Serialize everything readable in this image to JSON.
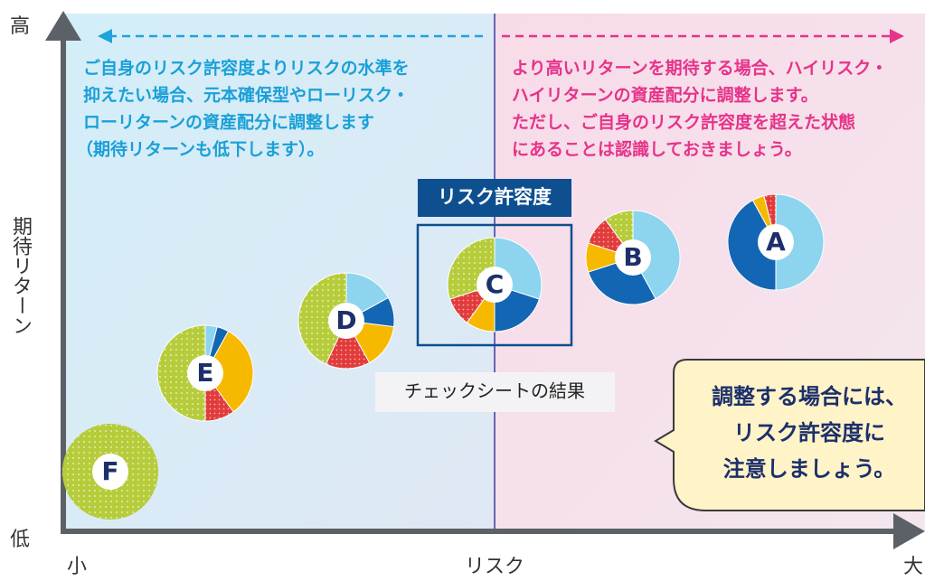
{
  "axis": {
    "y_high": "高",
    "y_label": "期待リターン",
    "y_low": "低",
    "x_low": "小",
    "x_label": "リスク",
    "x_high": "大"
  },
  "left_note": [
    "ご自身のリスク許容度よりリスクの水準を",
    "抑えたい場合、元本確保型やローリスク・",
    "ローリターンの資産配分に調整します",
    "（期待リターンも低下します）。"
  ],
  "right_note": [
    "より高いリターンを期待する場合、ハイリスク・",
    "ハイリターンの資産配分に調整します。",
    "ただし、ご自身のリスク許容度を超えた状態",
    "にあることは認識しておきましょう。"
  ],
  "tolerance_label": "リスク許容度",
  "checksheet_label": "チェックシートの結果",
  "portfolios": [
    {
      "label": "A"
    },
    {
      "label": "B"
    },
    {
      "label": "C"
    },
    {
      "label": "D"
    },
    {
      "label": "E"
    },
    {
      "label": "F"
    }
  ],
  "bubble": [
    "調整する場合には、",
    "リスク許容度に",
    "注意しましょう。"
  ]
}
